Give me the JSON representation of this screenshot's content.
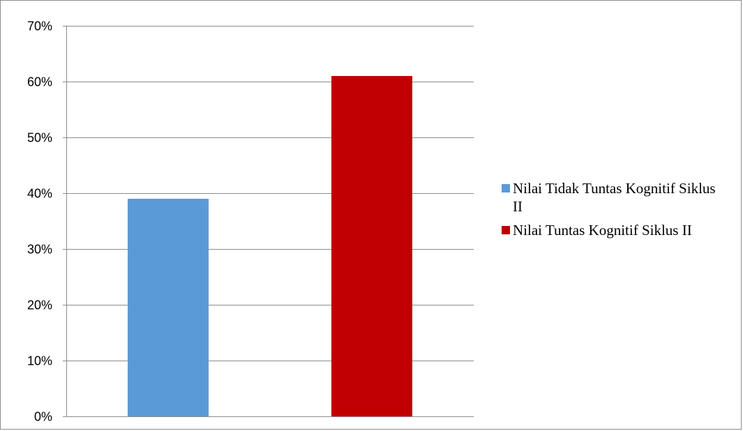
{
  "chart_data": {
    "type": "bar",
    "title": "",
    "xlabel": "",
    "ylabel": "",
    "ylim": [
      0,
      0.7
    ],
    "ytick_values": [
      0,
      0.1,
      0.2,
      0.3,
      0.4,
      0.5,
      0.6,
      0.7
    ],
    "yticks": [
      "0%",
      "10%",
      "20%",
      "30%",
      "40%",
      "50%",
      "60%",
      "70%"
    ],
    "grid": true,
    "legend_position": "right",
    "series": [
      {
        "name": "Nilai Tidak Tuntas Kognitif Siklus II",
        "value": 0.39,
        "color": "#5b9bd5"
      },
      {
        "name": "Nilai Tuntas Kognitif Siklus II",
        "value": 0.61,
        "color": "#c00000"
      }
    ]
  }
}
